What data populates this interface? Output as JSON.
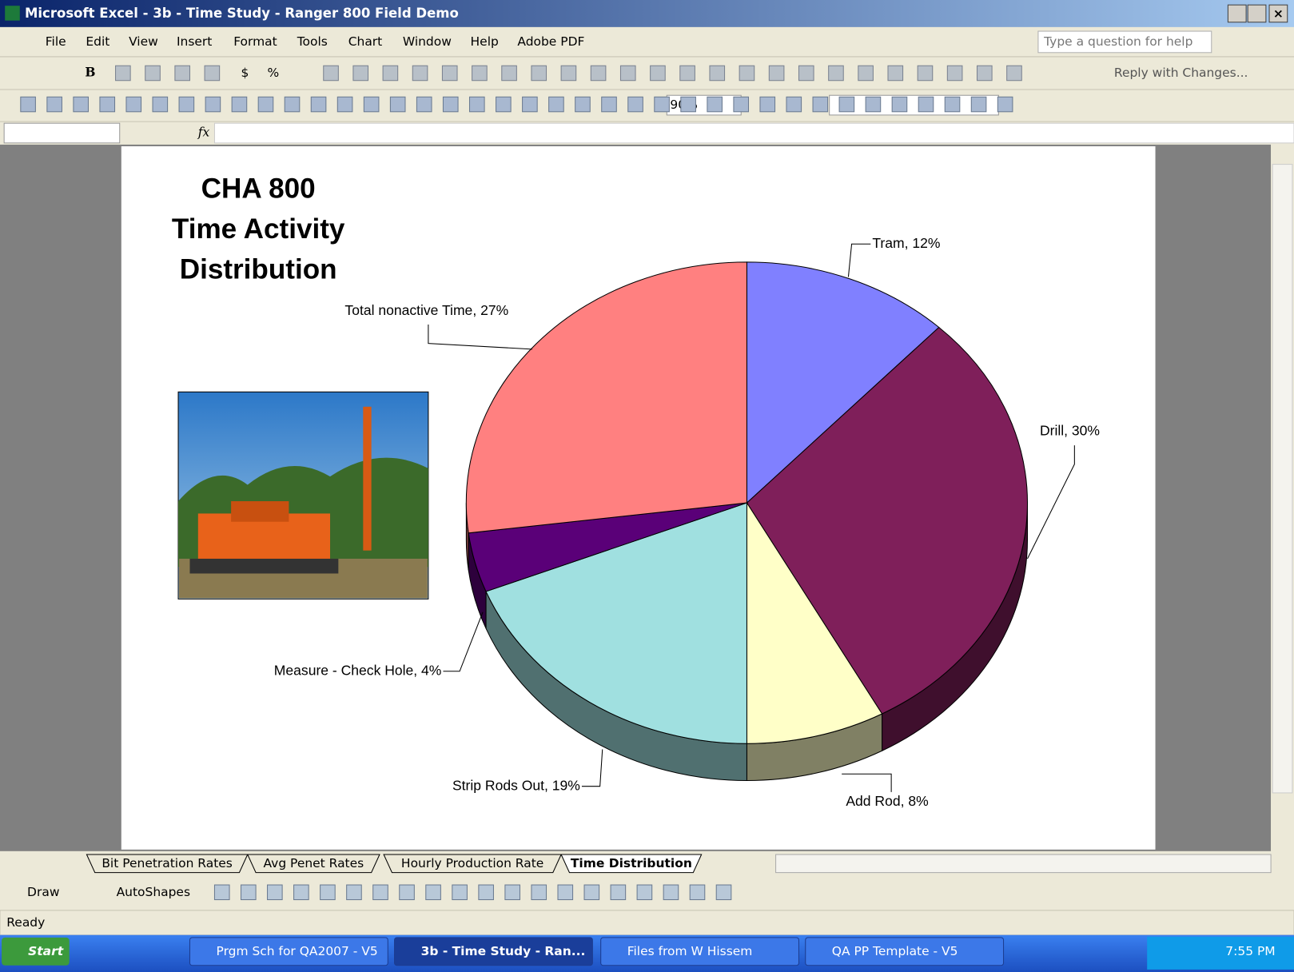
{
  "window": {
    "title": "Microsoft Excel - 3b - Time Study - Ranger 800 Field Demo"
  },
  "menu": [
    "File",
    "Edit",
    "View",
    "Insert",
    "Format",
    "Tools",
    "Chart",
    "Window",
    "Help",
    "Adobe PDF"
  ],
  "help_box": "Type a question for help",
  "toolbar": {
    "bold": "B",
    "currency": "$",
    "percent": "%",
    "reply": "Reply with Changes...",
    "zoom": "90%"
  },
  "formula_bar": {
    "fx": "fx"
  },
  "chart_data": {
    "type": "pie",
    "title_lines": [
      "CHA 800",
      "Time Activity",
      "Distribution"
    ],
    "values": [
      12,
      30,
      8,
      19,
      4,
      27
    ],
    "value_labels": [
      "Tram, 12%",
      "Drill, 30%",
      "Add Rod, 8%",
      "Strip Rods Out, 19%",
      "Measure - Check Hole, 4%",
      "Total nonactive Time, 27%"
    ],
    "colors": [
      "#8080ff",
      "#7f1f5a",
      "#ffffc8",
      "#a0e0e0",
      "#5a0078",
      "#ff8080"
    ],
    "side_colors": [
      "#404080",
      "#3f0f2d",
      "#808064",
      "#507070",
      "#2d003c",
      "#804040"
    ]
  },
  "sheet_tabs": [
    "Bit Penetration Rates",
    "Avg Penet Rates",
    "Hourly Production Rate",
    "Time Distribution"
  ],
  "draw_toolbar": {
    "draw": "Draw",
    "autoshapes": "AutoShapes"
  },
  "status": "Ready",
  "taskbar": {
    "start": "Start",
    "items": [
      "Prgm Sch for QA2007 - V5",
      "3b - Time Study - Ran...",
      "Files from W Hissem",
      "QA PP Template - V5"
    ],
    "clock": "7:55 PM"
  }
}
